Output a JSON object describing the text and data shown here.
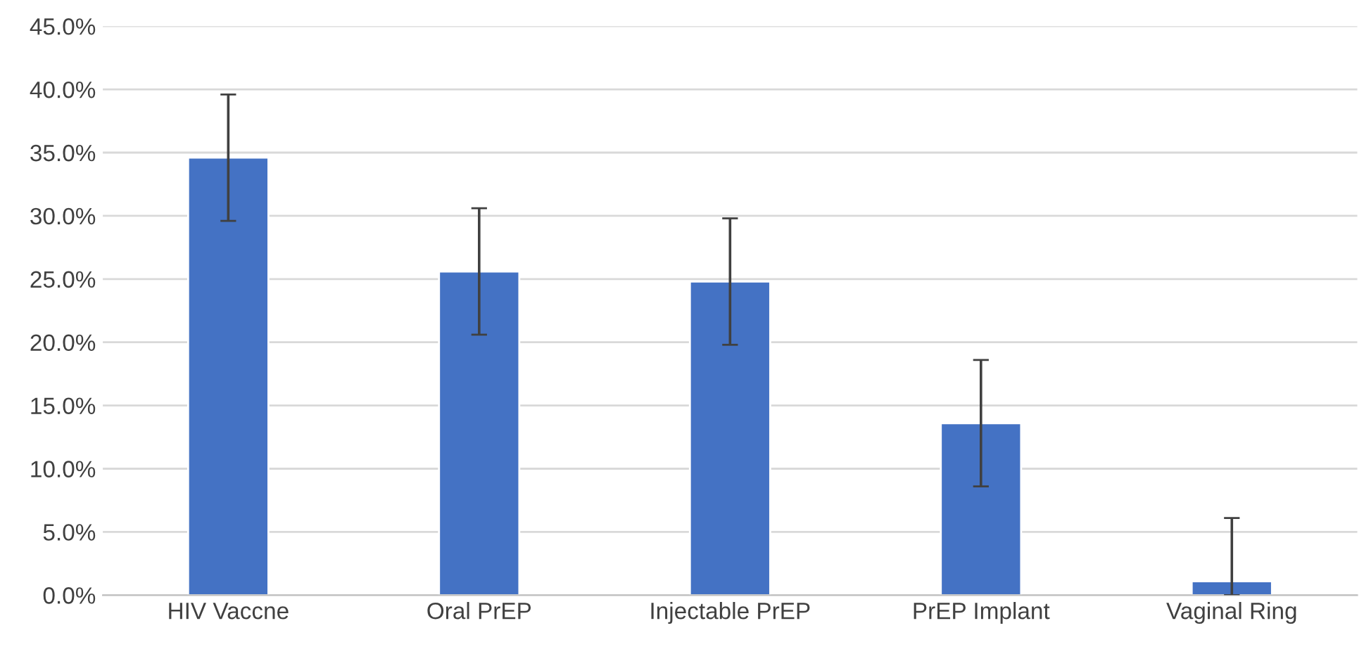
{
  "chart_data": {
    "type": "bar",
    "categories": [
      "HIV Vaccne",
      "Oral PrEP",
      "Injectable PrEP",
      "PrEP Implant",
      "Vaginal Ring"
    ],
    "values": [
      34.6,
      25.6,
      24.8,
      13.6,
      1.1
    ],
    "errors": [
      5,
      5,
      5,
      5,
      [
        0,
        6.1
      ]
    ],
    "color": "#4472c4",
    "ylim": [
      0,
      45
    ],
    "yticks": [
      {
        "value": 0,
        "label": "0.0%"
      },
      {
        "value": 5,
        "label": "5.0%"
      },
      {
        "value": 10,
        "label": "10.0%"
      },
      {
        "value": 15,
        "label": "15.0%"
      },
      {
        "value": 20,
        "label": "20.0%"
      },
      {
        "value": 25,
        "label": "25.0%"
      },
      {
        "value": 30,
        "label": "30.0%"
      },
      {
        "value": 35,
        "label": "35.0%"
      },
      {
        "value": 40,
        "label": "40.0%"
      },
      {
        "value": 45,
        "label": "45.0%"
      }
    ],
    "grid": "y"
  }
}
